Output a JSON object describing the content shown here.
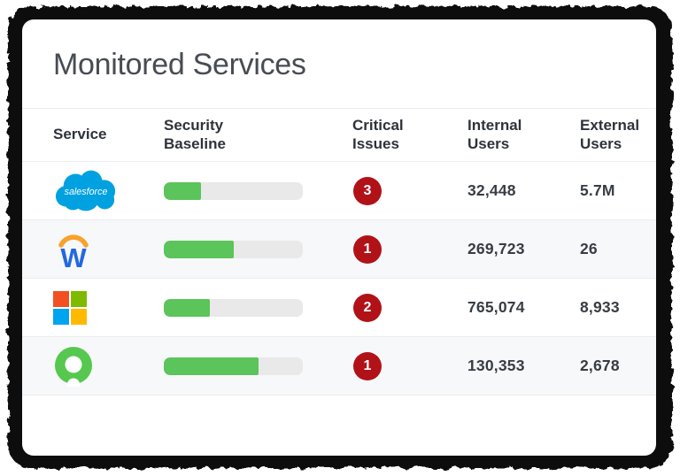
{
  "card": {
    "title": "Monitored Services"
  },
  "table": {
    "columns": {
      "service": "Service",
      "baseline": "Security Baseline",
      "critical": "Critical Issues",
      "internal": "Internal Users",
      "external": "External Users"
    },
    "rows": [
      {
        "service": "Salesforce",
        "logo": "salesforce-logo",
        "logo_text": "salesforce",
        "baseline_pct": 27,
        "critical_issues": "3",
        "internal_users": "32,448",
        "external_users": "5.7M"
      },
      {
        "service": "Workday",
        "logo": "workday-logo",
        "logo_text": "W",
        "baseline_pct": 50,
        "critical_issues": "1",
        "internal_users": "269,723",
        "external_users": "26"
      },
      {
        "service": "Microsoft",
        "logo": "microsoft-logo",
        "logo_text": "",
        "baseline_pct": 33,
        "critical_issues": "2",
        "internal_users": "765,074",
        "external_users": "8,933"
      },
      {
        "service": "Okta",
        "logo": "okta-logo",
        "logo_text": "",
        "baseline_pct": 68,
        "critical_issues": "1",
        "internal_users": "130,353",
        "external_users": "2,678"
      }
    ]
  },
  "colors": {
    "bar-green": "#5bc45b",
    "bar-track": "#e9e9e9",
    "badge-red": "#b11217",
    "title-color": "#474c54",
    "header-color": "#2e333a",
    "value-color": "#383d44",
    "line-color": "#ececec",
    "row-alt": "#f7f8fa",
    "salesforce-blue": "#00a1e0",
    "workday-blue": "#2268e0",
    "workday-orange": "#f8a22b",
    "okta-green": "#56c84f",
    "frame-black": "#0d0d0d"
  }
}
